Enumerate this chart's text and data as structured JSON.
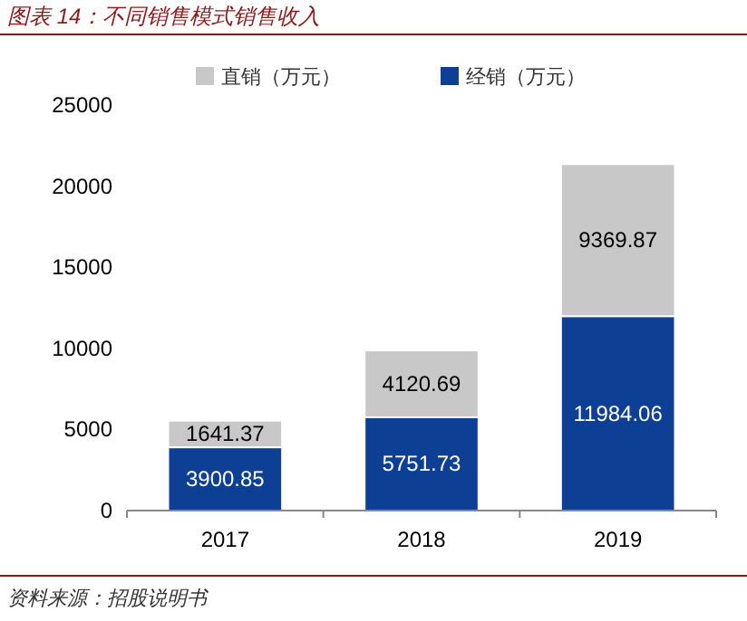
{
  "chart_data": {
    "type": "bar",
    "title": "图表 14：不同销售模式销售收入",
    "categories": [
      "2017",
      "2018",
      "2019"
    ],
    "stacked": true,
    "series": [
      {
        "name": "经销（万元）",
        "color": "#0d3f95",
        "values": [
          3900.85,
          5751.73,
          11984.06
        ]
      },
      {
        "name": "直销（万元）",
        "color": "#c8c8c8",
        "values": [
          1641.37,
          4120.69,
          9369.87
        ]
      }
    ],
    "ylim": [
      0,
      25000
    ],
    "yticks": [
      0,
      5000,
      10000,
      15000,
      20000,
      25000
    ],
    "data_labels": true,
    "legend": "top",
    "grid": false,
    "annotations": [
      "资料来源：招股说明书"
    ]
  }
}
